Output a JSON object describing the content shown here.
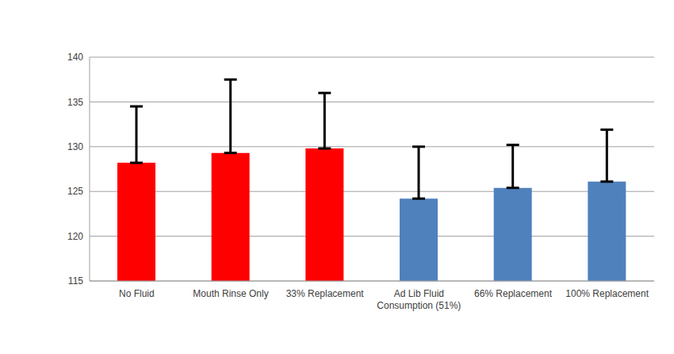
{
  "chart_data": {
    "type": "bar",
    "categories": [
      "No Fluid",
      "Mouth Rinse Only",
      "33% Replacement",
      "Ad Lib Fluid Consumption (51%)",
      "66% Replacement",
      "100% Replacement"
    ],
    "values": [
      128.2,
      129.3,
      129.8,
      124.2,
      125.4,
      126.1
    ],
    "error": [
      6.3,
      8.2,
      6.2,
      5.8,
      4.8,
      5.8
    ],
    "colors": [
      "#ff0000",
      "#ff0000",
      "#ff0000",
      "#4f81bd",
      "#4f81bd",
      "#4f81bd"
    ],
    "ylim": [
      115,
      140
    ],
    "yticks": [
      115,
      120,
      125,
      130,
      135,
      140
    ],
    "grid": true
  }
}
